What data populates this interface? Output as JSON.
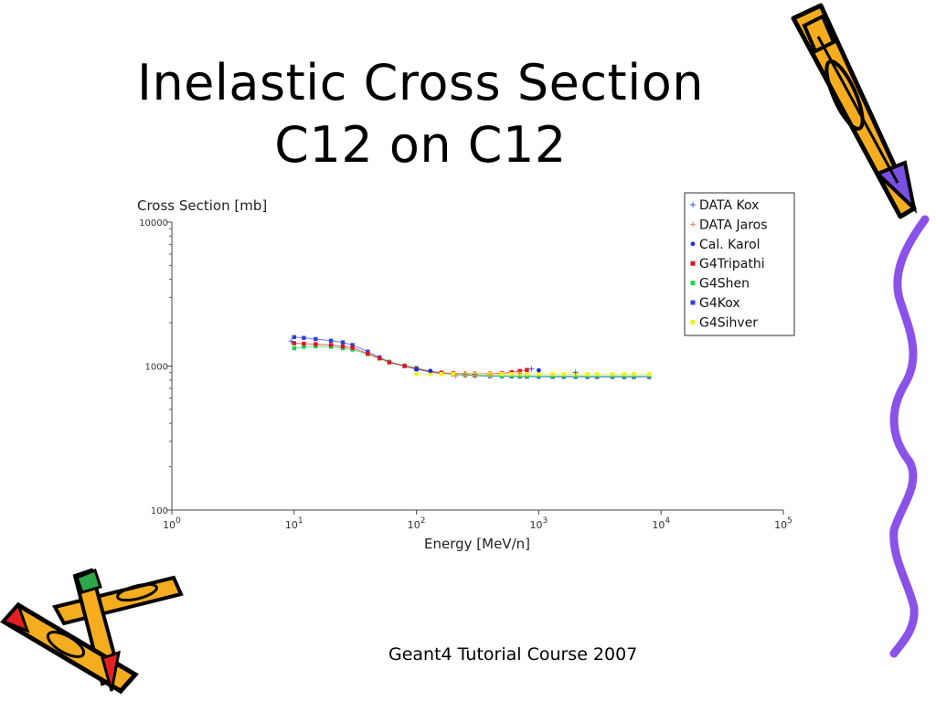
{
  "slide": {
    "title_line1": "Inelastic Cross Section",
    "title_line2": "C12 on C12",
    "footer": "Geant4 Tutorial Course 2007"
  },
  "chart_data": {
    "type": "scatter",
    "ylabel": "Cross Section [mb]",
    "xlabel": "Energy [MeV/n]",
    "xscale": "log",
    "yscale": "log",
    "xlim": [
      1,
      100000
    ],
    "ylim": [
      100,
      10000
    ],
    "x_ticks": [
      {
        "base": "10",
        "exp": "0"
      },
      {
        "base": "10",
        "exp": "1"
      },
      {
        "base": "10",
        "exp": "2"
      },
      {
        "base": "10",
        "exp": "3"
      },
      {
        "base": "10",
        "exp": "4"
      },
      {
        "base": "10",
        "exp": "5"
      }
    ],
    "y_ticks": [
      "100",
      "1000",
      "10000"
    ],
    "legend_position": "top-right",
    "series": [
      {
        "name": "DATA Kox",
        "marker": "plus",
        "color": "#3b5bcc",
        "connect": false,
        "x": [
          9.5,
          250,
          300,
          870,
          2000
        ],
        "y": [
          1490,
          880,
          875,
          955,
          905
        ]
      },
      {
        "name": "DATA Jaros",
        "marker": "plus",
        "color": "#e8834a",
        "connect": false,
        "x": [
          210,
          250,
          300,
          400,
          700
        ],
        "y": [
          855,
          860,
          860,
          870,
          890
        ]
      },
      {
        "name": "Cal. Karol",
        "marker": "dot",
        "color": "#1d2fd6",
        "connect": false,
        "x": [
          100,
          130,
          1000
        ],
        "y": [
          950,
          925,
          935
        ]
      },
      {
        "name": "G4Tripathi",
        "marker": "square",
        "color": "#e0141e",
        "connect": true,
        "x": [
          10,
          12,
          15,
          20,
          25,
          30,
          40,
          50,
          60,
          80,
          100,
          130,
          160,
          200,
          250,
          300,
          400,
          500,
          600,
          700,
          800
        ],
        "y": [
          1440,
          1430,
          1420,
          1400,
          1370,
          1340,
          1220,
          1130,
          1060,
          1000,
          960,
          920,
          900,
          890,
          885,
          885,
          885,
          890,
          905,
          925,
          940
        ]
      },
      {
        "name": "G4Shen",
        "marker": "square",
        "color": "#1bd44a",
        "connect": true,
        "x": [
          10,
          12,
          15,
          20,
          25,
          30,
          40,
          50,
          60,
          80,
          100,
          130,
          160,
          200,
          250,
          300,
          400,
          500,
          600,
          700,
          800,
          1000,
          1300,
          1600,
          2000,
          2500,
          3000,
          4000,
          5000,
          6000,
          8000
        ],
        "y": [
          1330,
          1360,
          1370,
          1360,
          1330,
          1300,
          1210,
          1130,
          1070,
          1010,
          970,
          920,
          895,
          880,
          870,
          865,
          860,
          858,
          856,
          855,
          855,
          855,
          855,
          855,
          855,
          855,
          855,
          855,
          855,
          855,
          855
        ]
      },
      {
        "name": "G4Kox",
        "marker": "square",
        "color": "#2b3fe0",
        "connect": true,
        "x": [
          10,
          12,
          15,
          20,
          25,
          30,
          40,
          50,
          60,
          80,
          100,
          130,
          160,
          200,
          250,
          300,
          400,
          500,
          600,
          700,
          800,
          1000,
          1300,
          1600,
          2000,
          2500,
          3000,
          4000,
          5000,
          6000,
          8000
        ],
        "y": [
          1590,
          1570,
          1540,
          1500,
          1460,
          1400,
          1260,
          1150,
          1070,
          1000,
          950,
          910,
          890,
          875,
          865,
          858,
          852,
          850,
          848,
          846,
          845,
          843,
          842,
          842,
          842,
          841,
          841,
          841,
          840,
          840,
          840
        ]
      },
      {
        "name": "G4Sihver",
        "marker": "square",
        "color": "#f2f21e",
        "connect": true,
        "x": [
          100,
          130,
          160,
          200,
          250,
          300,
          400,
          500,
          600,
          700,
          800,
          1000,
          1300,
          1600,
          2000,
          2500,
          3000,
          4000,
          5000,
          6000,
          8000
        ],
        "y": [
          880,
          880,
          880,
          880,
          880,
          880,
          880,
          880,
          880,
          880,
          880,
          880,
          880,
          880,
          880,
          880,
          880,
          880,
          880,
          880,
          880
        ]
      }
    ]
  }
}
